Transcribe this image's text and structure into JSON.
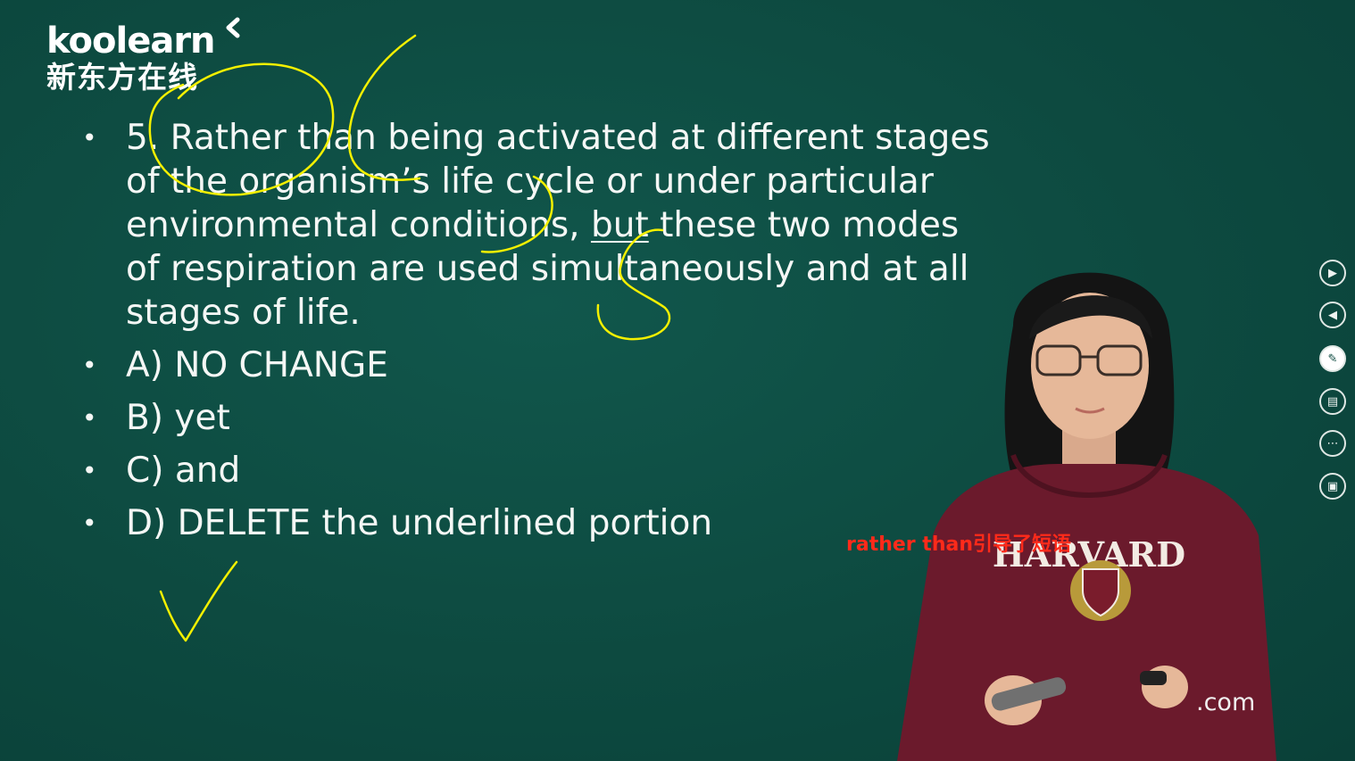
{
  "logo": {
    "brand_en": "koolearn",
    "brand_cn": "新东方在线"
  },
  "question": {
    "lines": [
      "5. Rather than being activated at different stages",
      "of the organism’s life cycle or under particular",
      "environmental conditions, ",
      "but",
      " these two modes",
      "of respiration are used simultaneously and at all",
      "stages of life."
    ]
  },
  "options": [
    {
      "label": "A) NO CHANGE"
    },
    {
      "label": "B) yet"
    },
    {
      "label": "C) and"
    },
    {
      "label": "D) DELETE the underlined portion"
    }
  ],
  "bullet": "•",
  "subtitle": "rather than引导了短语",
  "sweatshirt_text": "HARVARD",
  "watermark": ".com",
  "toolbar": [
    {
      "icon": "play-next-icon",
      "glyph": "▶"
    },
    {
      "icon": "play-prev-icon",
      "glyph": "◀"
    },
    {
      "icon": "pen-icon",
      "glyph": "✎"
    },
    {
      "icon": "slides-icon",
      "glyph": "▤"
    },
    {
      "icon": "more-icon",
      "glyph": "⋯"
    },
    {
      "icon": "screen-share-icon",
      "glyph": "▣"
    }
  ],
  "colors": {
    "board": "#0d4a40",
    "ink": "#f4f7f5",
    "annotation": "#f4f000",
    "caption": "#ff2a1a",
    "hoodie": "#6b1a2c"
  }
}
